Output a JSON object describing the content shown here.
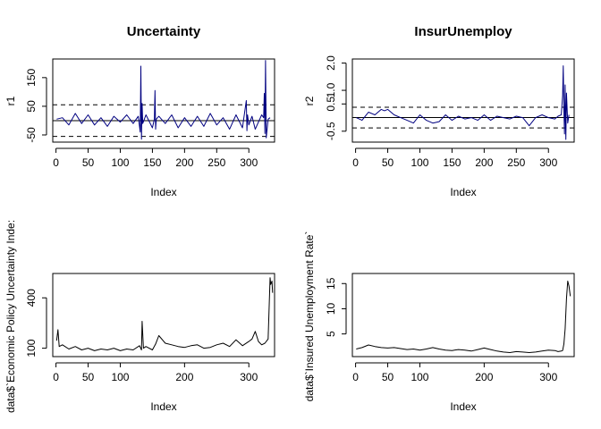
{
  "chart_data": [
    {
      "type": "line",
      "title": "Uncertainty",
      "xlabel": "Index",
      "ylabel": "r1",
      "xlim": [
        -5,
        340
      ],
      "ylim": [
        -75,
        215
      ],
      "xticks": [
        0,
        50,
        100,
        150,
        200,
        250,
        300
      ],
      "xtick_labels": [
        "0",
        "50",
        "100",
        "150",
        "200",
        "250",
        "300"
      ],
      "yticks": [
        -50,
        50,
        150
      ],
      "ytick_labels": [
        "-50",
        "50",
        "150"
      ],
      "hlines": [
        {
          "y": 0,
          "style": "solid"
        },
        {
          "y": 55,
          "style": "dashed"
        },
        {
          "y": -55,
          "style": "dashed"
        }
      ],
      "line_color": "#000080",
      "series": [
        {
          "x": [
            1,
            10,
            20,
            30,
            40,
            50,
            60,
            70,
            80,
            90,
            100,
            110,
            120,
            128,
            131,
            132,
            133,
            134,
            135,
            140,
            150,
            153,
            154,
            155,
            156,
            160,
            170,
            180,
            190,
            200,
            210,
            220,
            230,
            240,
            250,
            260,
            270,
            280,
            290,
            296,
            297,
            298,
            300,
            305,
            310,
            320,
            323,
            324,
            325,
            326,
            327,
            330,
            333
          ],
          "values": [
            5,
            10,
            -15,
            25,
            -10,
            20,
            -15,
            10,
            -20,
            15,
            -5,
            20,
            -10,
            15,
            -40,
            190,
            -65,
            60,
            -10,
            20,
            -25,
            5,
            105,
            -30,
            5,
            15,
            -10,
            20,
            -25,
            10,
            -20,
            15,
            -20,
            25,
            -15,
            10,
            -30,
            20,
            -25,
            70,
            -35,
            20,
            -15,
            15,
            -30,
            20,
            10,
            95,
            -45,
            210,
            -60,
            5,
            10
          ]
        }
      ]
    },
    {
      "type": "line",
      "title": "InsurUnemploy",
      "xlabel": "Index",
      "ylabel": "r2",
      "xlim": [
        -5,
        340
      ],
      "ylim": [
        -0.9,
        2.15
      ],
      "xticks": [
        0,
        50,
        100,
        150,
        200,
        250,
        300
      ],
      "xtick_labels": [
        "0",
        "50",
        "100",
        "150",
        "200",
        "250",
        "300"
      ],
      "yticks": [
        -0.5,
        0.5,
        1.0,
        2.0
      ],
      "ytick_labels": [
        "-0.5",
        "0.5",
        "1.0",
        "2.0"
      ],
      "hlines": [
        {
          "y": 0,
          "style": "solid"
        },
        {
          "y": 0.38,
          "style": "dashed"
        },
        {
          "y": -0.38,
          "style": "dashed"
        }
      ],
      "line_color": "#000080",
      "series": [
        {
          "x": [
            1,
            10,
            20,
            30,
            40,
            45,
            50,
            60,
            70,
            80,
            90,
            100,
            110,
            120,
            130,
            140,
            150,
            160,
            170,
            180,
            190,
            200,
            210,
            220,
            230,
            240,
            250,
            260,
            270,
            280,
            290,
            300,
            310,
            315,
            320,
            322,
            323,
            324,
            325,
            326,
            327,
            328,
            330,
            332
          ],
          "values": [
            0.0,
            -0.1,
            0.2,
            0.1,
            0.3,
            0.25,
            0.3,
            0.1,
            0.0,
            -0.1,
            -0.2,
            0.1,
            -0.1,
            -0.2,
            -0.15,
            0.1,
            -0.1,
            0.05,
            -0.05,
            0.0,
            -0.1,
            0.1,
            -0.1,
            0.05,
            0.0,
            -0.05,
            0.05,
            0.0,
            -0.3,
            0.0,
            0.1,
            0.0,
            -0.05,
            0.05,
            0.1,
            0.8,
            1.9,
            0.3,
            -0.6,
            1.2,
            -0.8,
            0.9,
            -0.2,
            0.1
          ]
        }
      ]
    },
    {
      "type": "line",
      "title": "",
      "xlabel": "Index",
      "ylabel": "data$`Economic Policy Uncertainty Inde:",
      "xlim": [
        -5,
        340
      ],
      "ylim": [
        50,
        545
      ],
      "xticks": [
        0,
        50,
        100,
        200,
        300
      ],
      "xtick_labels": [
        "0",
        "50",
        "100",
        "200",
        "300"
      ],
      "yticks": [
        100,
        400
      ],
      "ytick_labels": [
        "100",
        "400"
      ],
      "hlines": [],
      "line_color": "#000000",
      "series": [
        {
          "x": [
            1,
            3,
            5,
            10,
            20,
            30,
            40,
            50,
            60,
            70,
            80,
            90,
            100,
            110,
            120,
            130,
            133,
            134,
            136,
            140,
            150,
            155,
            160,
            170,
            180,
            190,
            200,
            210,
            220,
            230,
            240,
            250,
            260,
            270,
            280,
            290,
            300,
            305,
            310,
            315,
            320,
            325,
            330,
            333,
            334,
            336,
            337
          ],
          "values": [
            145,
            210,
            110,
            120,
            95,
            110,
            90,
            100,
            85,
            95,
            90,
            100,
            85,
            95,
            90,
            115,
            90,
            260,
            100,
            110,
            90,
            125,
            175,
            130,
            120,
            110,
            105,
            115,
            120,
            100,
            105,
            120,
            130,
            110,
            150,
            115,
            140,
            155,
            200,
            140,
            120,
            130,
            155,
            520,
            480,
            500,
            430
          ]
        }
      ]
    },
    {
      "type": "line",
      "title": "",
      "xlabel": "Index",
      "ylabel": "data$`Insured Unemployment Rate`",
      "xlim": [
        -5,
        340
      ],
      "ylim": [
        0.5,
        17
      ],
      "xticks": [
        0,
        50,
        100,
        200,
        300
      ],
      "xtick_labels": [
        "0",
        "50",
        "100",
        "200",
        "300"
      ],
      "yticks": [
        5,
        10,
        15
      ],
      "ytick_labels": [
        "5",
        "10",
        "15"
      ],
      "hlines": [],
      "line_color": "#000000",
      "series": [
        {
          "x": [
            1,
            10,
            20,
            30,
            40,
            50,
            60,
            70,
            80,
            90,
            100,
            110,
            120,
            130,
            140,
            150,
            160,
            170,
            180,
            190,
            200,
            210,
            220,
            230,
            240,
            250,
            260,
            270,
            280,
            290,
            300,
            310,
            315,
            320,
            322,
            324,
            326,
            328,
            330,
            332,
            334
          ],
          "values": [
            2.0,
            2.3,
            2.8,
            2.5,
            2.3,
            2.2,
            2.3,
            2.1,
            1.9,
            2.0,
            1.8,
            2.0,
            2.3,
            2.0,
            1.8,
            1.7,
            1.9,
            1.8,
            1.6,
            1.9,
            2.2,
            1.9,
            1.6,
            1.4,
            1.3,
            1.5,
            1.4,
            1.3,
            1.4,
            1.6,
            1.8,
            1.7,
            1.5,
            1.6,
            1.7,
            3.0,
            6.0,
            12.0,
            15.5,
            14.5,
            12.5
          ]
        }
      ]
    }
  ]
}
